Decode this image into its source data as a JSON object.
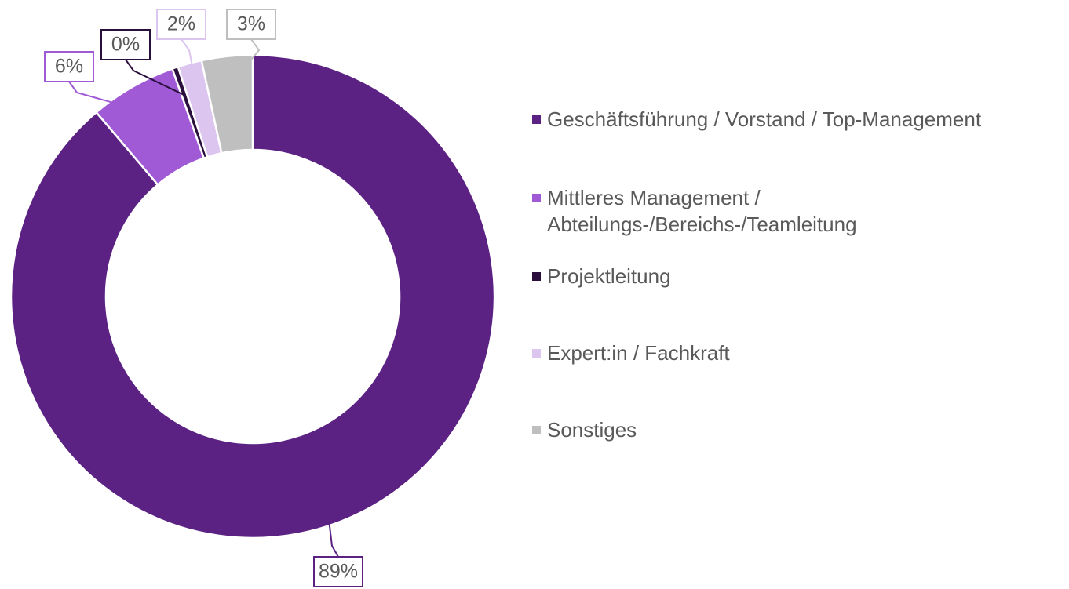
{
  "chart_data": {
    "type": "donut",
    "categories": [
      "Geschäftsführung / Vorstand / Top-Management",
      "Mittleres Management / Abteilungs-/Bereichs-/Teamleitung",
      "Projektleitung",
      "Expert:in / Fachkraft",
      "Sonstiges"
    ],
    "values": [
      88.8,
      5.8,
      0.4,
      1.6,
      3.4
    ],
    "value_labels": [
      "89%",
      "6%",
      "0%",
      "2%",
      "3%"
    ],
    "colors": [
      "#5b2283",
      "#a05ad6",
      "#2a0f3d",
      "#dcc5ee",
      "#bfbfbf"
    ],
    "legend": "right"
  }
}
